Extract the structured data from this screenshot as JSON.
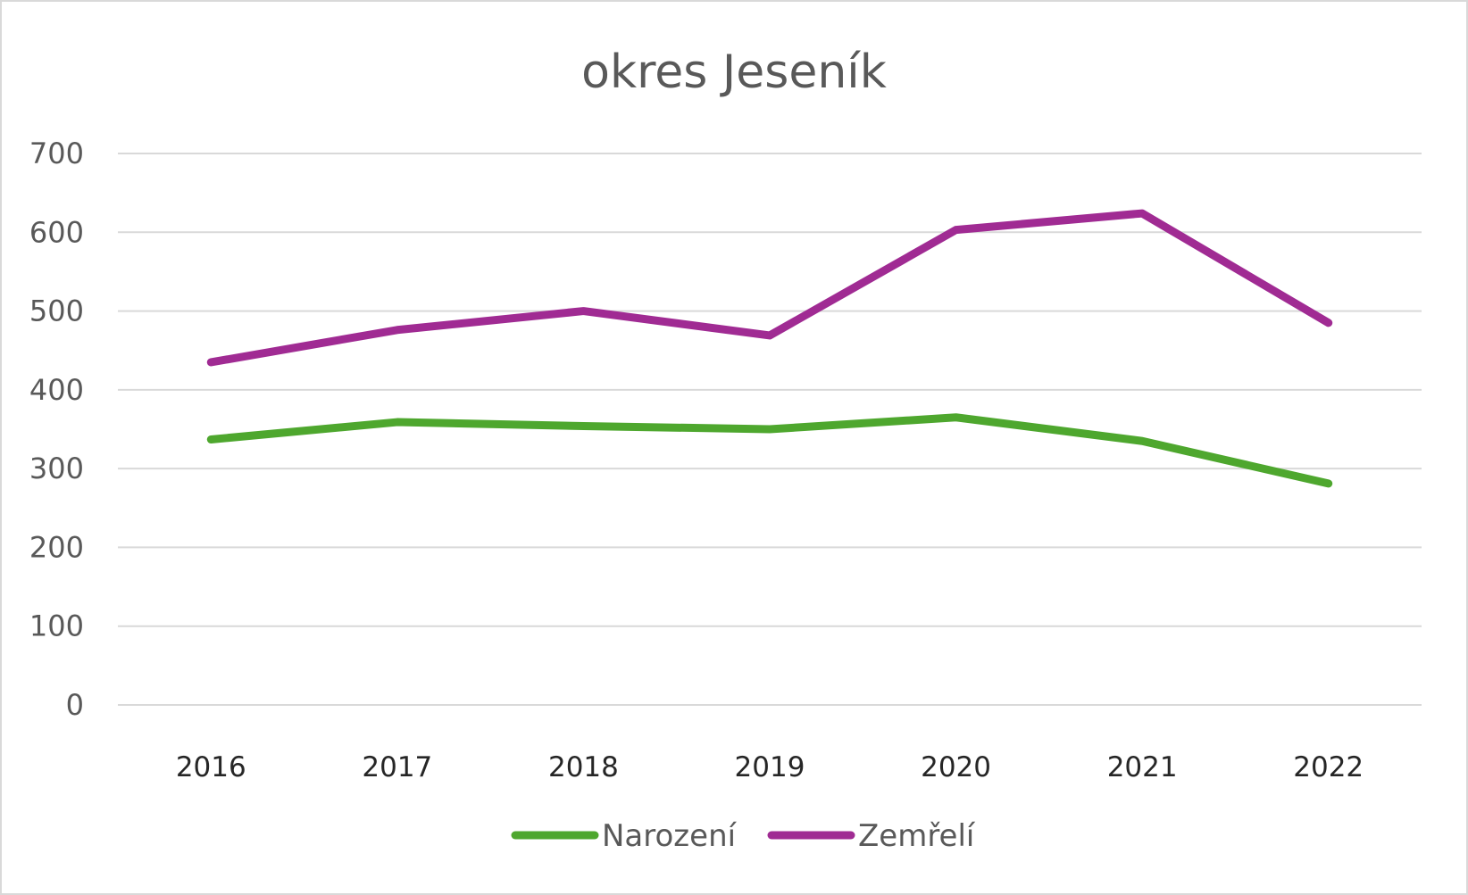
{
  "chart_data": {
    "type": "line",
    "title": "okres Jeseník",
    "xlabel": "",
    "ylabel": "",
    "categories": [
      "2016",
      "2017",
      "2018",
      "2019",
      "2020",
      "2021",
      "2022"
    ],
    "ylim": [
      0,
      700
    ],
    "yticks": [
      0,
      100,
      200,
      300,
      400,
      500,
      600,
      700
    ],
    "grid": true,
    "legend_position": "bottom",
    "series": [
      {
        "name": "Narození",
        "color": "#4ea72e",
        "values": [
          337,
          359,
          354,
          350,
          365,
          335,
          281
        ]
      },
      {
        "name": "Zemřelí",
        "color": "#a02b93",
        "values": [
          435,
          476,
          500,
          469,
          603,
          624,
          485
        ]
      }
    ]
  }
}
